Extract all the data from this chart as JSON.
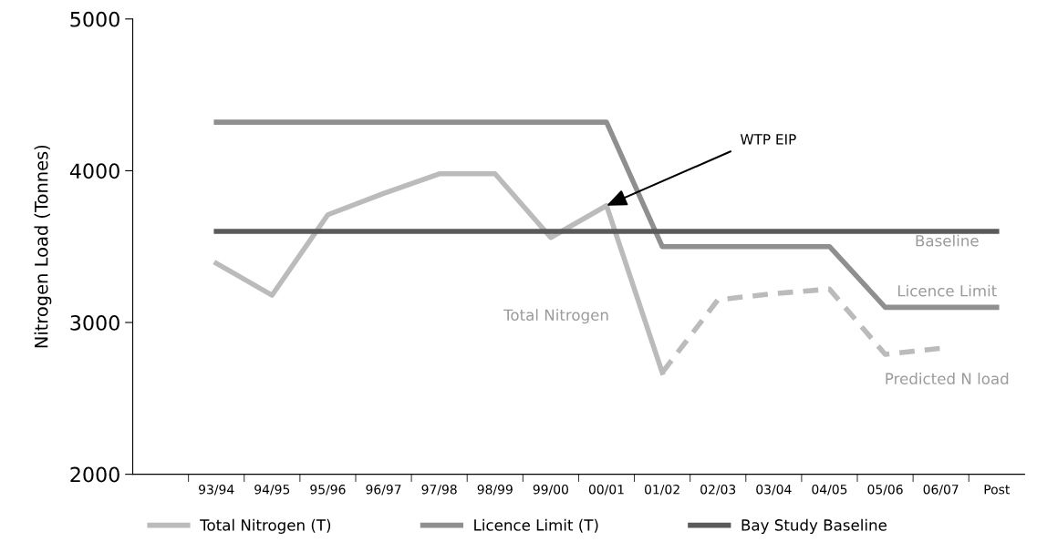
{
  "chart_data": {
    "type": "line",
    "ylabel": "Nitrogen Load (Tonnes)",
    "categories": [
      null,
      "93/94",
      "94/95",
      "95/96",
      "96/97",
      "97/98",
      "98/99",
      "99/00",
      "00/01",
      "01/02",
      "02/03",
      "03/04",
      "04/05",
      "05/06",
      "06/07",
      "Post"
    ],
    "ylim": [
      2000,
      5000
    ],
    "yticks": [
      2000,
      3000,
      4000,
      5000
    ],
    "series": [
      {
        "name": "Total Nitrogen (T)",
        "color": "#bbbbbb",
        "values": [
          null,
          3390,
          3180,
          3710,
          3850,
          3980,
          3980,
          3560,
          3770,
          2670,
          null,
          null,
          null,
          null,
          null,
          null
        ]
      },
      {
        "color": "#bbbbbb",
        "line_style": "dashed",
        "values": [
          null,
          null,
          null,
          null,
          null,
          null,
          null,
          null,
          null,
          2670,
          3150,
          3190,
          3220,
          2790,
          2830,
          null
        ]
      },
      {
        "name": "Licence Limit (T)",
        "color": "#8f8f8f",
        "values": [
          null,
          4320,
          4320,
          4320,
          4320,
          4320,
          4320,
          4320,
          4320,
          3500,
          3500,
          3500,
          3500,
          3100,
          3100,
          3100
        ]
      },
      {
        "name": "Bay Study Baseline",
        "color": "#5a5a5a",
        "values": [
          null,
          3600,
          3600,
          3600,
          3600,
          3600,
          3600,
          3600,
          3600,
          3600,
          3600,
          3600,
          3600,
          3600,
          3600,
          3600
        ]
      }
    ],
    "annotations": [
      {
        "text": "WTP EIP",
        "x": "00/01",
        "y": 3770
      },
      "Total Nitrogen",
      "Baseline",
      "Licence Limit",
      "Predicted N load"
    ],
    "legend": "bottom",
    "grid": false,
    "marker": "none",
    "line_style": "solid"
  }
}
